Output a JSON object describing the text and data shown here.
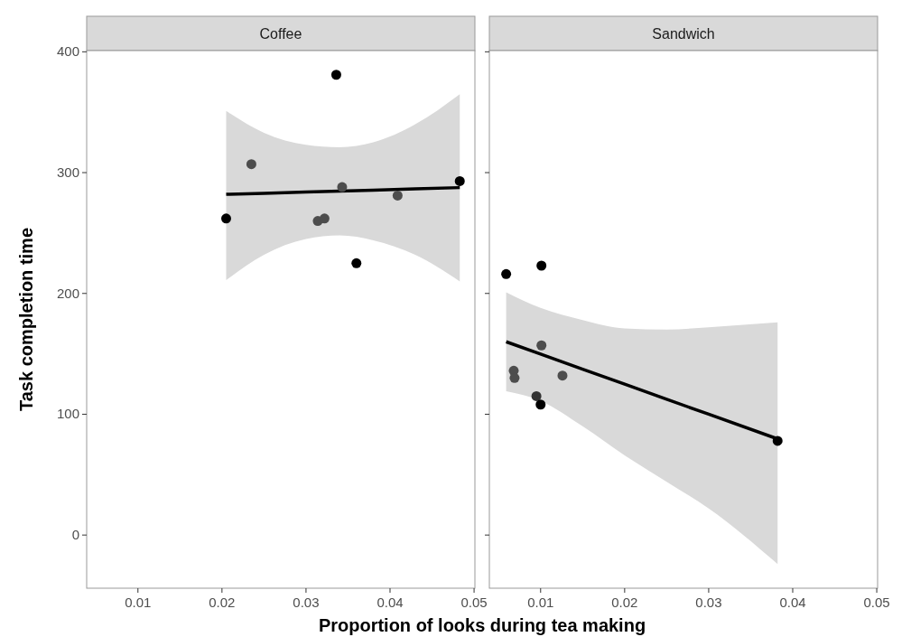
{
  "chart_data": [
    {
      "type": "scatter",
      "title": "Coffee",
      "xlabel": "Proportion of looks during tea making",
      "ylabel": "Task completion time",
      "xlim": [
        0.0039,
        0.0501
      ],
      "ylim": [
        -44,
        401
      ],
      "xticks": [
        0.01,
        0.02,
        0.03,
        0.04,
        0.05
      ],
      "yticks": [
        0,
        100,
        200,
        300,
        400
      ],
      "series": [
        {
          "type": "line",
          "marker": "none",
          "color": "#000000",
          "x": [
            0.0205,
            0.025,
            0.03,
            0.034,
            0.038,
            0.043,
            0.0483
          ],
          "values": [
            282,
            282.9,
            283.9,
            284.7,
            285.5,
            286.5,
            287.6
          ],
          "lower": [
            211,
            232,
            245,
            248,
            244,
            232,
            210
          ],
          "upper": [
            351,
            333,
            323,
            321,
            325,
            340,
            365
          ]
        },
        {
          "marker": "circle",
          "x": [
            0.0205,
            0.0235,
            0.0336,
            0.036,
            0.0343,
            0.0314,
            0.0322,
            0.0409,
            0.0483
          ],
          "values": [
            262,
            307,
            381,
            225,
            288,
            260,
            262,
            281,
            293
          ],
          "colors": [
            "#000000",
            "#4d4d4d",
            "#000000",
            "#000000",
            "#4d4d4d",
            "#4d4d4d",
            "#4d4d4d",
            "#4d4d4d",
            "#000000"
          ]
        }
      ]
    },
    {
      "type": "scatter",
      "title": "Sandwich",
      "xlim": [
        0.0039,
        0.0501
      ],
      "ylim": [
        -44,
        401
      ],
      "xticks": [
        0.01,
        0.02,
        0.03,
        0.04,
        0.05
      ],
      "yticks": [
        0,
        100,
        200,
        300,
        400
      ],
      "tick_labels": "x",
      "series": [
        {
          "type": "line",
          "marker": "none",
          "color": "#000000",
          "x": [
            0.0059,
            0.01,
            0.015,
            0.02,
            0.025,
            0.03,
            0.0382
          ],
          "values": [
            160,
            149.8,
            137.3,
            124.9,
            112.4,
            100,
            79.6
          ],
          "lower": [
            119,
            111,
            90,
            66,
            44,
            22,
            -24
          ],
          "upper": [
            201,
            188,
            178,
            171,
            170,
            172,
            176
          ]
        },
        {
          "marker": "circle",
          "x": [
            0.0059,
            0.0101,
            0.0101,
            0.0068,
            0.0069,
            0.0126,
            0.0095,
            0.01,
            0.0382
          ],
          "values": [
            216,
            223,
            157,
            136,
            130,
            132,
            115,
            108,
            78
          ],
          "colors": [
            "#000000",
            "#000000",
            "#4d4d4d",
            "#4d4d4d",
            "#4d4d4d",
            "#4d4d4d",
            "#333333",
            "#000000",
            "#000000"
          ]
        }
      ]
    }
  ]
}
